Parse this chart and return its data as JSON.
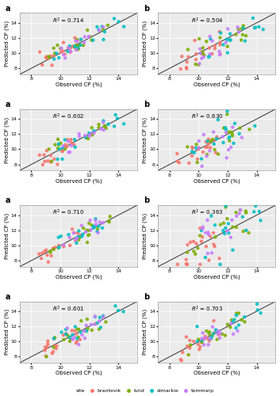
{
  "panels": [
    {
      "label": "a",
      "r2_text": "$R^2$ = 0.714",
      "col": 0,
      "row": 0
    },
    {
      "label": "b",
      "r2_text": "$R^2$ = 0.504",
      "col": 1,
      "row": 0
    },
    {
      "label": "a",
      "r2_text": "$R^2$ = 0.602",
      "col": 0,
      "row": 1
    },
    {
      "label": "b",
      "r2_text": "$R^2$ = 0.630",
      "col": 1,
      "row": 1
    },
    {
      "label": "a",
      "r2_text": "$R^2$ = 0.710",
      "col": 0,
      "row": 2
    },
    {
      "label": "b",
      "r2_text": "$R^2$ = 0.363",
      "col": 1,
      "row": 2
    },
    {
      "label": "a",
      "r2_text": "$R^2$ = 0.601",
      "col": 0,
      "row": 3
    },
    {
      "label": "b",
      "r2_text": "$R^2$ = 0.703",
      "col": 1,
      "row": 3
    }
  ],
  "sites": [
    "brantevik",
    "lund",
    "stmarkie",
    "tommarp"
  ],
  "site_colors": {
    "brantevik": "#F8766D",
    "lund": "#7CAE00",
    "stmarkie": "#00BFC4",
    "tommarp": "#C77CFF"
  },
  "xlim": [
    7.2,
    15.3
  ],
  "ylim": [
    7.2,
    15.3
  ],
  "xticks": [
    8,
    10,
    12,
    14
  ],
  "yticks": [
    8,
    10,
    12,
    14
  ],
  "xlabel": "Observed CP (%)",
  "ylabel": "Predicted CP (%)",
  "bg_color": "#EBEBEB",
  "grid_color": "#FFFFFF",
  "marker_size": 10,
  "line_color": "#333333",
  "n_per_site": [
    20,
    18,
    18,
    14
  ]
}
